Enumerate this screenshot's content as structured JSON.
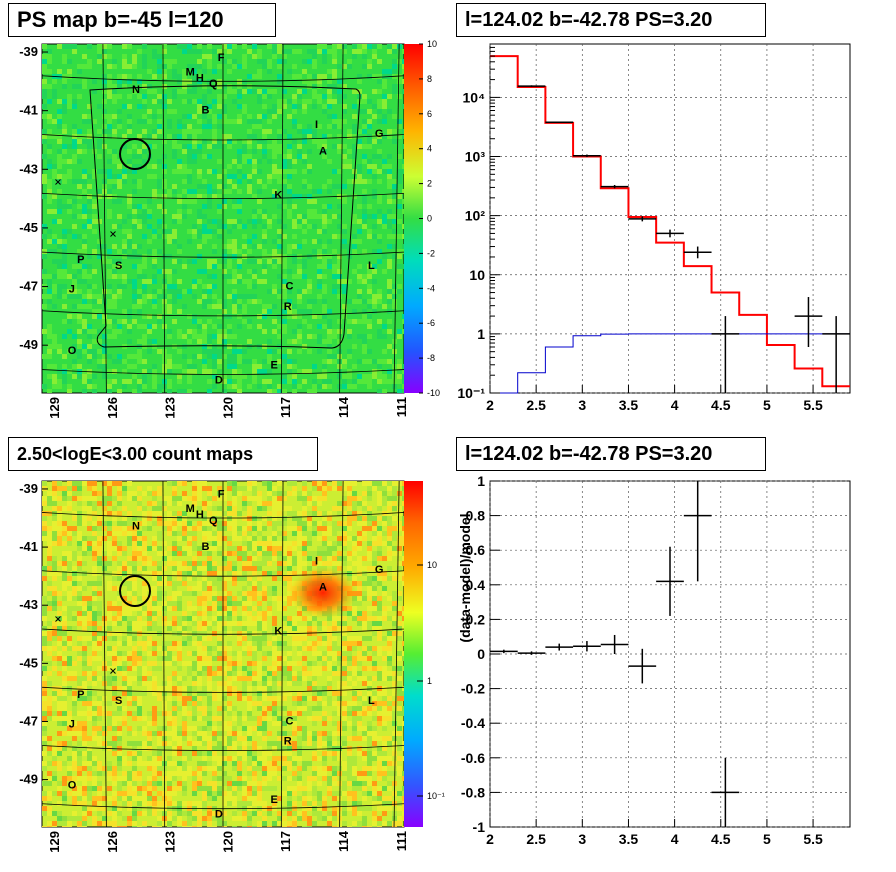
{
  "panels": {
    "tl": {
      "title": "PS map b=-45 l=120"
    },
    "tr": {
      "title": "l=124.02 b=-42.78 PS=3.20"
    },
    "bl": {
      "title": "2.50<logE<3.00 count maps"
    },
    "br": {
      "title": "l=124.02 b=-42.78 PS=3.20"
    }
  },
  "chart_data": [
    {
      "id": "ps-map",
      "type": "heatmap",
      "title": "PS map b=-45 l=120",
      "x_ticks": [
        "129",
        "126",
        "123",
        "120",
        "117",
        "114",
        "111"
      ],
      "y_ticks": [
        "-39",
        "-41",
        "-43",
        "-45",
        "-47",
        "-49"
      ],
      "colorbar_ticks": [
        "10",
        "8",
        "6",
        "4",
        "2",
        "0",
        "-2",
        "-4",
        "-6",
        "-8",
        "-10"
      ],
      "zlim": [
        -10,
        10
      ],
      "base_color": "#33dd44",
      "sources": [
        {
          "label": "F",
          "l": 120.1,
          "b": -39.3
        },
        {
          "label": "M",
          "l": 121.7,
          "b": -39.8
        },
        {
          "label": "H",
          "l": 121.2,
          "b": -40.0
        },
        {
          "label": "Q",
          "l": 120.5,
          "b": -40.2
        },
        {
          "label": "N",
          "l": 124.5,
          "b": -40.4
        },
        {
          "label": "B",
          "l": 120.9,
          "b": -41.1
        },
        {
          "label": "I",
          "l": 115.2,
          "b": -41.6
        },
        {
          "label": "G",
          "l": 112.0,
          "b": -41.9
        },
        {
          "label": "A",
          "l": 114.9,
          "b": -42.5
        },
        {
          "label": "K",
          "l": 117.2,
          "b": -44.0
        },
        {
          "label": "P",
          "l": 127.1,
          "b": -46.2
        },
        {
          "label": "S",
          "l": 125.2,
          "b": -46.4
        },
        {
          "label": "L",
          "l": 112.6,
          "b": -46.4
        },
        {
          "label": "J",
          "l": 127.5,
          "b": -47.2
        },
        {
          "label": "C",
          "l": 116.7,
          "b": -47.1
        },
        {
          "label": "R",
          "l": 116.8,
          "b": -47.8
        },
        {
          "label": "O",
          "l": 127.4,
          "b": -49.3
        },
        {
          "label": "E",
          "l": 117.5,
          "b": -49.8
        },
        {
          "label": "D",
          "l": 120.2,
          "b": -50.3
        }
      ]
    },
    {
      "id": "spectrum",
      "type": "line",
      "title": "l=124.02 b=-42.78 PS=3.20",
      "xlim": [
        2,
        5.9
      ],
      "ylim": [
        0.1,
        80000
      ],
      "y_scale": "log",
      "x_ticks": [
        "2",
        "2.5",
        "3",
        "3.5",
        "4",
        "4.5",
        "5",
        "5.5"
      ],
      "y_ticks": [
        "10^-1",
        "1",
        "10",
        "10^2",
        "10^3",
        "10^4"
      ],
      "grid": true,
      "series": [
        {
          "color": "#ff0000",
          "bin_edges": [
            2.0,
            2.3,
            2.6,
            2.9,
            3.2,
            3.5,
            3.8,
            4.1,
            4.4,
            4.7,
            5.0,
            5.3,
            5.6,
            5.9
          ],
          "values": [
            50000,
            15000,
            3700,
            1000,
            290,
            95,
            35,
            14,
            5,
            2.1,
            0.65,
            0.26,
            0.13
          ]
        },
        {
          "color": "#0000cc",
          "bin_edges": [
            2.0,
            2.3,
            2.6,
            2.9,
            3.2,
            3.5,
            3.8,
            4.1,
            4.4,
            4.7,
            5.0,
            5.3,
            5.6,
            5.9
          ],
          "values": [
            0.04,
            0.22,
            0.6,
            0.93,
            0.99,
            1.0,
            1.0,
            1.0,
            1.0,
            1.0,
            1.0,
            1.0,
            1.0
          ]
        },
        {
          "color": "#000000",
          "type": "errorbar",
          "points": [
            {
              "x": 2.45,
              "y": 15500,
              "xerr": 0.15,
              "ylo": 15000,
              "yhi": 16000
            },
            {
              "x": 2.75,
              "y": 3800,
              "xerr": 0.15,
              "ylo": 3700,
              "yhi": 3900
            },
            {
              "x": 3.05,
              "y": 1030,
              "xerr": 0.15,
              "ylo": 980,
              "yhi": 1080
            },
            {
              "x": 3.35,
              "y": 310,
              "xerr": 0.15,
              "ylo": 290,
              "yhi": 330
            },
            {
              "x": 3.65,
              "y": 88,
              "xerr": 0.15,
              "ylo": 80,
              "yhi": 97
            },
            {
              "x": 3.95,
              "y": 50,
              "xerr": 0.15,
              "ylo": 43,
              "yhi": 58
            },
            {
              "x": 4.25,
              "y": 24,
              "xerr": 0.15,
              "ylo": 19,
              "yhi": 30
            },
            {
              "x": 4.55,
              "y": 1,
              "xerr": 0.15,
              "ylo": 0.1,
              "yhi": 2
            },
            {
              "x": 5.45,
              "y": 2,
              "xerr": 0.15,
              "ylo": 0.6,
              "yhi": 4.2
            },
            {
              "x": 5.75,
              "y": 1,
              "xerr": 0.15,
              "ylo": 0.1,
              "yhi": 2
            }
          ]
        }
      ]
    },
    {
      "id": "count-map",
      "type": "heatmap",
      "title": "2.50<logE<3.00 count maps",
      "x_ticks": [
        "129",
        "126",
        "123",
        "120",
        "117",
        "114",
        "111"
      ],
      "y_ticks": [
        "-39",
        "-41",
        "-43",
        "-45",
        "-47",
        "-49"
      ],
      "colorbar_ticks": [
        "10",
        "1",
        "10^-1"
      ],
      "z_scale": "log",
      "base_color": "#ccee33",
      "hotspot": {
        "label": "A",
        "l": 114.9,
        "b": -42.5
      }
    },
    {
      "id": "residual",
      "type": "scatter",
      "title": "l=124.02 b=-42.78 PS=3.20",
      "ylabel": "(data-model)/model",
      "xlim": [
        2,
        5.9
      ],
      "ylim": [
        -1,
        1
      ],
      "x_ticks": [
        "2",
        "2.5",
        "3",
        "3.5",
        "4",
        "4.5",
        "5",
        "5.5"
      ],
      "y_ticks": [
        "1",
        "0.8",
        "0.6",
        "0.4",
        "0.2",
        "0",
        "-0.2",
        "-0.4",
        "-0.6",
        "-0.8",
        "-1"
      ],
      "grid": true,
      "points": [
        {
          "x": 2.15,
          "y": 0.015,
          "xerr": 0.15,
          "yerr": 0.01
        },
        {
          "x": 2.45,
          "y": 0.005,
          "xerr": 0.15,
          "yerr": 0.01
        },
        {
          "x": 2.75,
          "y": 0.04,
          "xerr": 0.15,
          "yerr": 0.02
        },
        {
          "x": 3.05,
          "y": 0.045,
          "xerr": 0.15,
          "yerr": 0.03
        },
        {
          "x": 3.35,
          "y": 0.055,
          "xerr": 0.15,
          "yerr": 0.055
        },
        {
          "x": 3.65,
          "y": -0.07,
          "xerr": 0.15,
          "yerr": 0.1
        },
        {
          "x": 3.95,
          "y": 0.42,
          "xerr": 0.15,
          "yerr": 0.2
        },
        {
          "x": 4.25,
          "y": 0.8,
          "xerr": 0.15,
          "yerr": 0.38
        },
        {
          "x": 4.55,
          "y": -0.8,
          "xerr": 0.15,
          "yerr": 0.2
        }
      ]
    }
  ]
}
